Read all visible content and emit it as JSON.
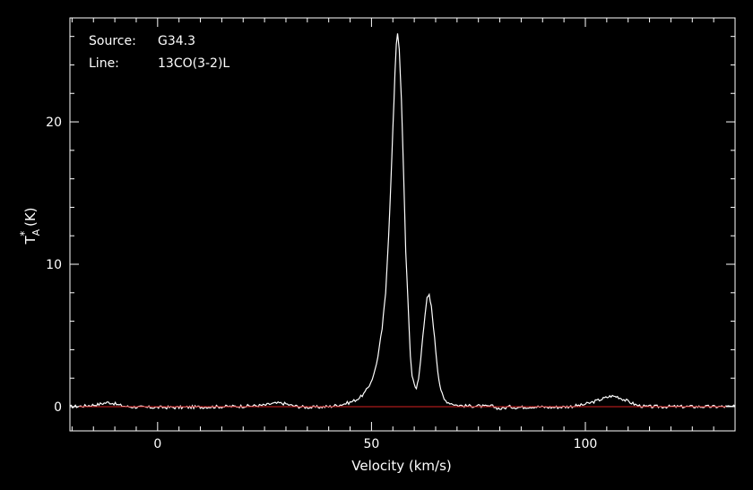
{
  "chart_data": {
    "type": "line",
    "title": "",
    "xlabel": "Velocity (km/s)",
    "ylabel": {
      "main": "T",
      "sub": "A",
      "sup": "*",
      "unit": " (K)"
    },
    "xlim": [
      -20.5,
      135
    ],
    "ylim": [
      -1.7,
      27.3
    ],
    "xticks": [
      0,
      50,
      100
    ],
    "yticks": [
      0,
      10,
      20
    ],
    "grid": false,
    "background": "#000000",
    "annotations": [
      {
        "key": "Source:",
        "value": "G34.3"
      },
      {
        "key": "Line:",
        "value": "13CO(3-2)L"
      }
    ],
    "series": [
      {
        "color": "#ffffff",
        "x": [
          -20.5,
          -17,
          -14,
          -12.5,
          -11.5,
          -10.5,
          -9,
          -7,
          -3,
          5,
          15,
          22,
          25,
          26.5,
          28.5,
          30,
          31,
          33,
          36,
          40,
          43,
          45,
          46.5,
          47.5,
          48.5,
          49.5,
          50.5,
          51.5,
          52.5,
          53.3,
          54,
          54.5,
          55,
          55.5,
          55.8,
          56.1,
          56.5,
          57,
          57.5,
          58,
          58.5,
          58.8,
          59.1,
          59.5,
          60,
          60.5,
          61,
          61.5,
          62,
          62.5,
          63,
          63.5,
          64,
          64.5,
          65,
          65.5,
          66,
          66.5,
          67,
          68,
          69,
          70,
          72,
          75,
          77,
          78,
          79,
          80,
          81,
          82,
          84,
          88,
          92,
          96,
          99,
          101,
          103,
          104.5,
          106,
          107.5,
          109,
          110.5,
          112,
          114,
          118,
          125,
          135
        ],
        "y": [
          0,
          0.05,
          0.15,
          0.25,
          0.3,
          0.25,
          0.1,
          0,
          -0.05,
          -0.05,
          0,
          0.05,
          0.1,
          0.2,
          0.25,
          0.2,
          0.1,
          0,
          -0.05,
          0,
          0.15,
          0.3,
          0.5,
          0.7,
          1.0,
          1.5,
          2.2,
          3.5,
          5.5,
          8.0,
          12.0,
          15.5,
          19.5,
          23.5,
          25.5,
          26.3,
          25.0,
          21.5,
          16.5,
          11.0,
          7.5,
          5.5,
          3.6,
          2.2,
          1.6,
          1.3,
          1.9,
          3.3,
          5.0,
          6.5,
          7.6,
          7.8,
          7.0,
          5.6,
          4.0,
          2.5,
          1.5,
          0.9,
          0.5,
          0.3,
          0.2,
          0.1,
          0.05,
          0.05,
          0,
          0.05,
          -0.05,
          -0.15,
          -0.1,
          0,
          -0.05,
          0,
          -0.05,
          0,
          0.1,
          0.25,
          0.45,
          0.6,
          0.75,
          0.7,
          0.5,
          0.3,
          0.1,
          0,
          0,
          0,
          0
        ]
      },
      {
        "color": "#d42020",
        "x": [
          -20.5,
          135
        ],
        "y": [
          0,
          0
        ]
      }
    ]
  }
}
